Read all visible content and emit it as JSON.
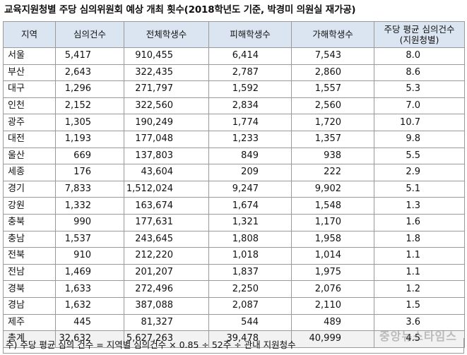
{
  "title": "교육지원청별 주당 심의위원회 예상 개최 횟수(2018학년도 기준, 박경미 의원실 재가공)",
  "table": {
    "headers": [
      "지역",
      "심의건수",
      "전체학생수",
      "피해학생수",
      "가해학생수",
      "주당 평균 심의건수",
      "(지원청별)"
    ],
    "rows": [
      {
        "region": "서울",
        "cases": "5,417",
        "students": "910,455",
        "victims": "6,414",
        "offenders": "7,543",
        "weekly": "8.0"
      },
      {
        "region": "부산",
        "cases": "2,643",
        "students": "322,435",
        "victims": "2,787",
        "offenders": "2,860",
        "weekly": "8.6"
      },
      {
        "region": "대구",
        "cases": "1,296",
        "students": "271,797",
        "victims": "1,592",
        "offenders": "1,557",
        "weekly": "5.3"
      },
      {
        "region": "인천",
        "cases": "2,152",
        "students": "322,560",
        "victims": "2,834",
        "offenders": "2,560",
        "weekly": "7.0"
      },
      {
        "region": "광주",
        "cases": "1,305",
        "students": "190,249",
        "victims": "1,774",
        "offenders": "1,720",
        "weekly": "10.7"
      },
      {
        "region": "대전",
        "cases": "1,193",
        "students": "177,048",
        "victims": "1,233",
        "offenders": "1,357",
        "weekly": "9.8"
      },
      {
        "region": "울산",
        "cases": "669",
        "students": "137,803",
        "victims": "849",
        "offenders": "938",
        "weekly": "5.5"
      },
      {
        "region": "세종",
        "cases": "176",
        "students": "43,604",
        "victims": "209",
        "offenders": "222",
        "weekly": "2.9"
      },
      {
        "region": "경기",
        "cases": "7,833",
        "students": "1,512,024",
        "victims": "9,247",
        "offenders": "9,902",
        "weekly": "5.1"
      },
      {
        "region": "강원",
        "cases": "1,332",
        "students": "163,674",
        "victims": "1,674",
        "offenders": "1,548",
        "weekly": "1.3"
      },
      {
        "region": "충북",
        "cases": "990",
        "students": "177,631",
        "victims": "1,321",
        "offenders": "1,170",
        "weekly": "1.6"
      },
      {
        "region": "충남",
        "cases": "1,537",
        "students": "243,645",
        "victims": "1,808",
        "offenders": "1,958",
        "weekly": "1.8"
      },
      {
        "region": "전북",
        "cases": "910",
        "students": "212,220",
        "victims": "1,018",
        "offenders": "1,014",
        "weekly": "1.1"
      },
      {
        "region": "전남",
        "cases": "1,469",
        "students": "201,207",
        "victims": "1,837",
        "offenders": "1,975",
        "weekly": "1.1"
      },
      {
        "region": "경북",
        "cases": "1,633",
        "students": "272,496",
        "victims": "2,250",
        "offenders": "2,076",
        "weekly": "1.2"
      },
      {
        "region": "경남",
        "cases": "1,632",
        "students": "387,088",
        "victims": "2,087",
        "offenders": "2,110",
        "weekly": "1.5"
      },
      {
        "region": "제주",
        "cases": "445",
        "students": "81,327",
        "victims": "544",
        "offenders": "489",
        "weekly": "3.6"
      },
      {
        "region": "총계",
        "cases": "32,632",
        "students": "5,627,263",
        "victims": "39,478",
        "offenders": "40,999",
        "weekly": "4.5"
      }
    ]
  },
  "footnote": "주) 주당 평균 심의 건수 = 지역별 심의건수 × 0.85 ÷ 52주 ÷ 관내 지원청수",
  "watermark": "중앙뉴스타임스"
}
